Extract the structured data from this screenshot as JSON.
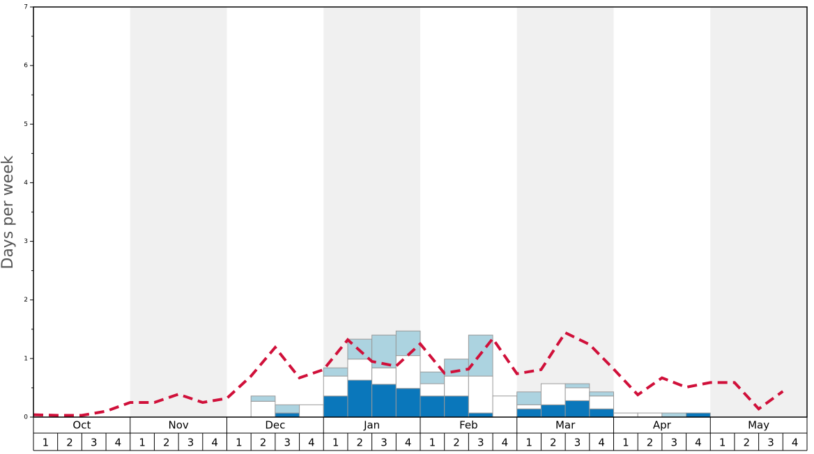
{
  "chart_data": {
    "type": "bar",
    "ylabel": "Days per week",
    "months": [
      "Oct",
      "Nov",
      "Dec",
      "Jan",
      "Feb",
      "Mar",
      "Apr",
      "May"
    ],
    "categories": [
      1,
      2,
      3,
      4,
      1,
      2,
      3,
      4,
      1,
      2,
      3,
      4,
      1,
      2,
      3,
      4,
      1,
      2,
      3,
      4,
      1,
      2,
      3,
      4,
      1,
      2,
      3,
      4,
      1,
      2,
      3,
      4
    ],
    "ylim": [
      0,
      7
    ],
    "yticks": [
      0,
      1,
      2,
      3,
      4,
      5,
      6,
      7
    ],
    "stacked": true,
    "series": [
      {
        "color": "#0a77bb",
        "values": [
          0,
          0,
          0,
          0,
          0,
          0,
          0,
          0,
          0,
          0,
          0.07,
          0,
          0.36,
          0.63,
          0.56,
          0.49,
          0.36,
          0.36,
          0.07,
          0,
          0.14,
          0.21,
          0.28,
          0.14,
          0,
          0,
          0,
          0.07,
          0,
          0,
          0,
          0
        ]
      },
      {
        "color": "#ffffff",
        "values": [
          0,
          0,
          0,
          0,
          0,
          0,
          0,
          0,
          0,
          0.27,
          0,
          0.21,
          0.34,
          0.36,
          0.28,
          0.56,
          0.21,
          0.34,
          0.63,
          0.36,
          0.07,
          0.36,
          0.22,
          0.22,
          0.07,
          0.07,
          0,
          0,
          0,
          0,
          0,
          0
        ]
      },
      {
        "color": "#acd3e0",
        "values": [
          0,
          0,
          0,
          0,
          0,
          0,
          0,
          0,
          0,
          0.09,
          0.14,
          0,
          0.14,
          0.34,
          0.56,
          0.42,
          0.2,
          0.29,
          0.7,
          0,
          0.22,
          0,
          0.07,
          0.07,
          0,
          0,
          0.07,
          0,
          0,
          0,
          0,
          0
        ]
      }
    ],
    "line": {
      "type": "line",
      "color": "#d0103a",
      "dashed": true,
      "values": [
        0.04,
        0.03,
        0.03,
        0.1,
        0.25,
        0.25,
        0.39,
        0.25,
        0.32,
        0.7,
        1.19,
        0.67,
        0.81,
        1.32,
        0.95,
        0.87,
        1.25,
        0.75,
        0.82,
        1.34,
        0.74,
        0.81,
        1.44,
        1.24,
        0.82,
        0.38,
        0.67,
        0.51,
        0.59,
        0.59,
        0.14,
        0.44
      ]
    },
    "shade_alternate_months": true
  }
}
